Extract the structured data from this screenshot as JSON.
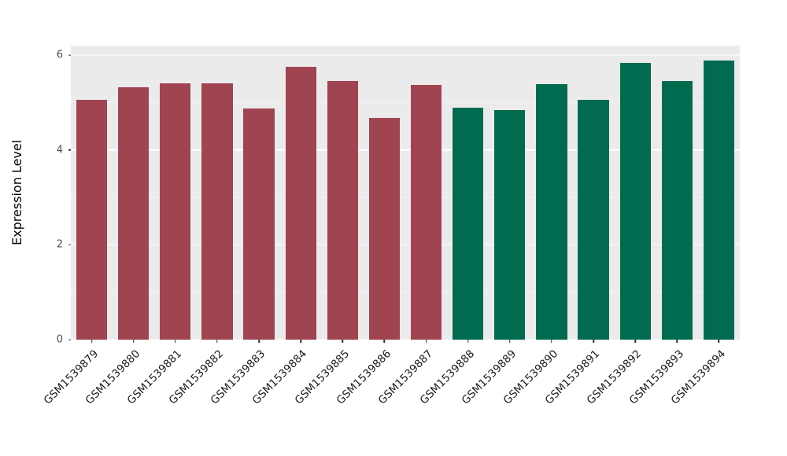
{
  "chart_data": {
    "type": "bar",
    "title": "",
    "xlabel": "",
    "ylabel": "Expression Level",
    "ylim": [
      0,
      6.2
    ],
    "yticks": [
      0,
      2,
      4,
      6
    ],
    "yticks_minor": [
      1,
      3,
      5
    ],
    "grid": "on",
    "legend": "none",
    "panel_background": "#EBEBEB",
    "categories": [
      "GSM1539879",
      "GSM1539880",
      "GSM1539881",
      "GSM1539882",
      "GSM1539883",
      "GSM1539884",
      "GSM1539885",
      "GSM1539886",
      "GSM1539887",
      "GSM1539888",
      "GSM1539889",
      "GSM1539890",
      "GSM1539891",
      "GSM1539892",
      "GSM1539893",
      "GSM1539894"
    ],
    "values": [
      5.05,
      5.32,
      5.4,
      5.4,
      4.88,
      5.76,
      5.46,
      4.67,
      5.37,
      4.89,
      4.84,
      5.39,
      5.06,
      5.84,
      5.46,
      5.89
    ],
    "colors": [
      "#A04452",
      "#A04452",
      "#A04452",
      "#A04452",
      "#A04452",
      "#A04452",
      "#A04452",
      "#A04452",
      "#A04452",
      "#006B4E",
      "#006B4E",
      "#006B4E",
      "#006B4E",
      "#006B4E",
      "#006B4E",
      "#006B4E"
    ],
    "group_colors": {
      "group1": "#A04452",
      "group2": "#006B4E"
    }
  }
}
